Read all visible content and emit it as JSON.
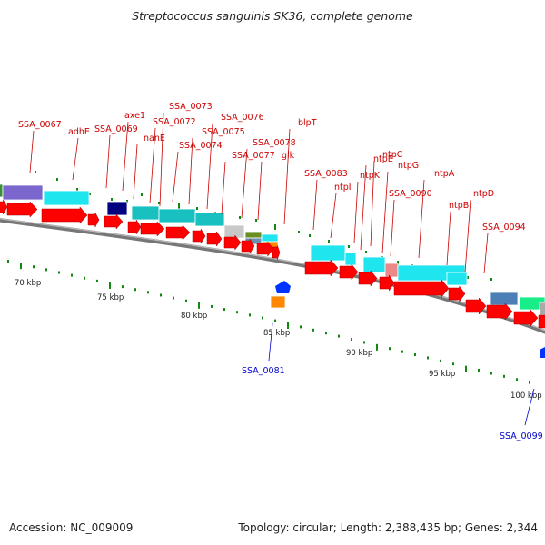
{
  "title": "Streptococcus sanguinis SK36, complete genome",
  "footer": {
    "accession": "Accession: NC_009009",
    "summary": "Topology: circular; Length: 2,388,435 bp; Genes: 2,344"
  },
  "colors": {
    "backbone": "#777777",
    "cds_forward": "#ff0000",
    "label_top": "#cc0000",
    "label_bottom": "#0000cc",
    "tick": "#118811"
  },
  "scale_labels": [
    "70 kbp",
    "75 kbp",
    "80 kbp",
    "85 kbp",
    "90 kbp",
    "95 kbp",
    "100 kbp"
  ],
  "top_labels": [
    "SSA_0067",
    "adhE",
    "SSA_0069",
    "axe1",
    "nanE",
    "SSA_0072",
    "SSA_0073",
    "SSA_0074",
    "SSA_0075",
    "SSA_0076",
    "SSA_0077",
    "SSA_0078",
    "glk",
    "blpT",
    "SSA_0083",
    "ntpI",
    "ntpK",
    "ntpE",
    "ntpC",
    "ntpG",
    "SSA_0090",
    "ntpA",
    "ntpB",
    "ntpD",
    "SSA_0094"
  ],
  "bottom_labels": [
    "SSA_0081",
    "SSA_0099"
  ]
}
